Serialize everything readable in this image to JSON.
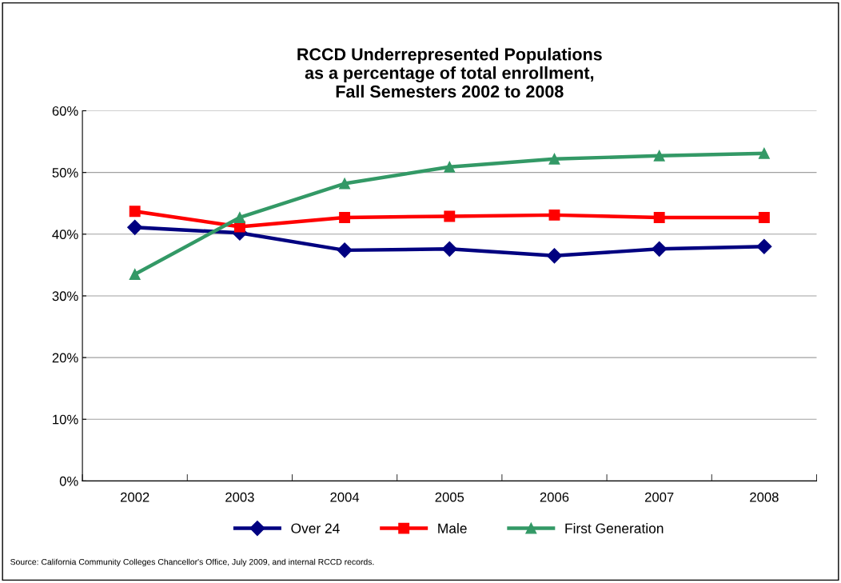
{
  "chart_data": {
    "type": "line",
    "title": "RCCD Underrepresented Populations\nas a percentage of total enrollment,\nFall Semesters 2002 to 2008",
    "categories": [
      "2002",
      "2003",
      "2004",
      "2005",
      "2006",
      "2007",
      "2008"
    ],
    "series": [
      {
        "name": "Over 24",
        "color": "#000080",
        "marker": "diamond",
        "values": [
          41.1,
          40.2,
          37.4,
          37.6,
          36.5,
          37.6,
          38.0
        ]
      },
      {
        "name": "Male",
        "color": "#ff0000",
        "marker": "square",
        "values": [
          43.7,
          41.2,
          42.7,
          42.9,
          43.1,
          42.7,
          42.7
        ]
      },
      {
        "name": "First Generation",
        "color": "#339966",
        "marker": "triangle",
        "values": [
          33.5,
          42.7,
          48.2,
          50.9,
          52.2,
          52.7,
          53.1
        ]
      }
    ],
    "ylim": [
      0,
      60
    ],
    "yticks": [
      {
        "value": 0,
        "label": "0%"
      },
      {
        "value": 10,
        "label": "10%"
      },
      {
        "value": 20,
        "label": "20%"
      },
      {
        "value": 30,
        "label": "30%"
      },
      {
        "value": 40,
        "label": "40%"
      },
      {
        "value": 50,
        "label": "50%"
      },
      {
        "value": 60,
        "label": "60%"
      }
    ],
    "grid": "y",
    "legend": "bottom",
    "line_style": "solid",
    "annotations": [
      "Source: California Community Colleges Chancellor's Office, July 2009, and internal RCCD records."
    ]
  }
}
